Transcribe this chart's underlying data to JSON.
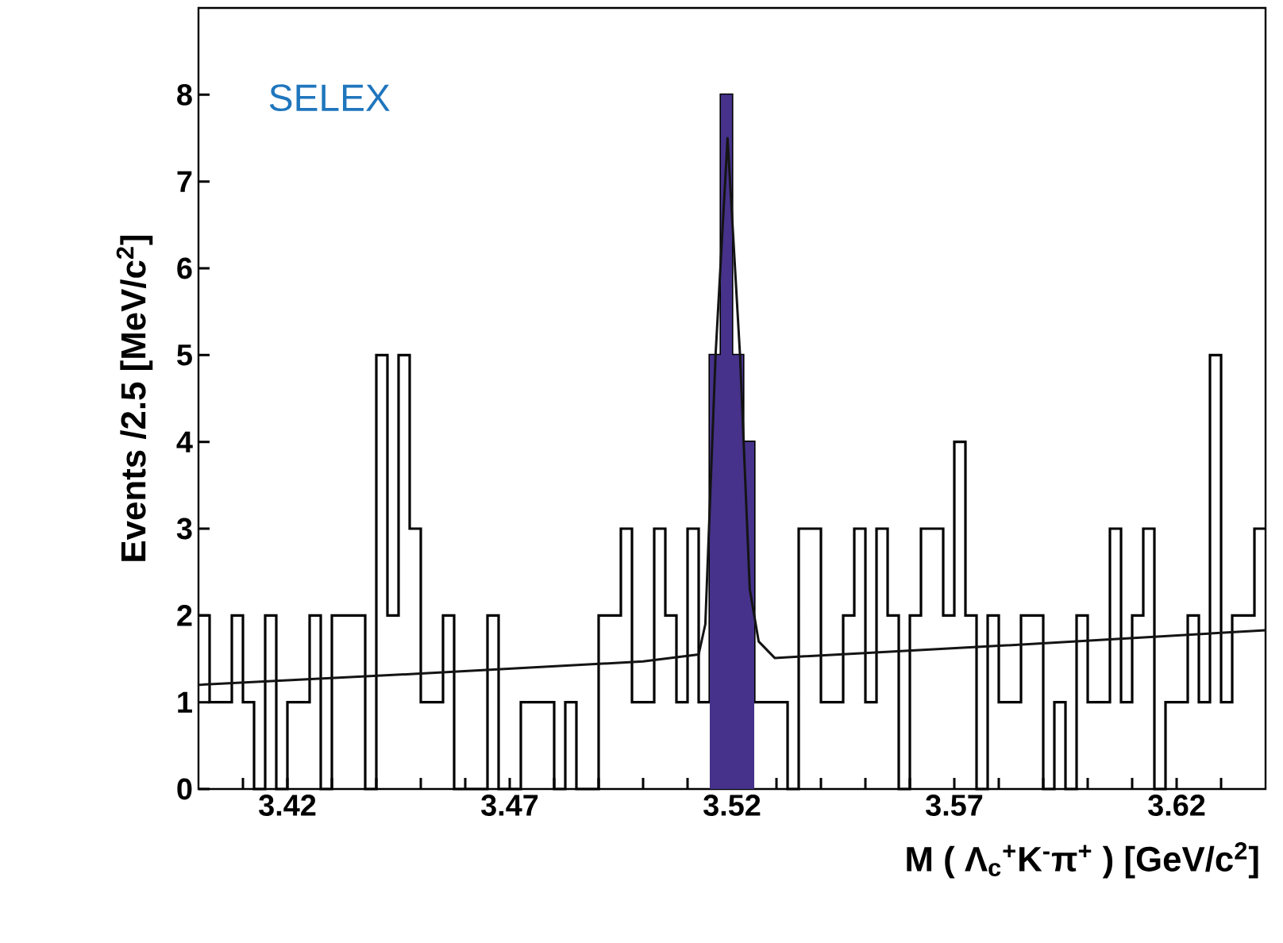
{
  "chart_data": {
    "type": "histogram",
    "xlabel": "M ( Λ$_{c}$$^{+}$K$^{-}$π$^{+}$ )  [GeV/c$^{2}$]",
    "ylabel": "Events /2.5 [MeV/c$^{2}$]",
    "annotations": [
      "SELEX"
    ],
    "bins": [
      3.4,
      3.4025,
      3.405,
      3.4075,
      3.41,
      3.4125,
      3.415,
      3.4175,
      3.42,
      3.4225,
      3.425,
      3.4275,
      3.43,
      3.4325,
      3.435,
      3.4375,
      3.44,
      3.4425,
      3.445,
      3.4475,
      3.45,
      3.4525,
      3.455,
      3.4575,
      3.46,
      3.4625,
      3.465,
      3.4675,
      3.47,
      3.4725,
      3.475,
      3.4775,
      3.48,
      3.4825,
      3.485,
      3.4875,
      3.49,
      3.4925,
      3.495,
      3.4975,
      3.5,
      3.5025,
      3.505,
      3.5075,
      3.51,
      3.5125,
      3.515,
      3.5175,
      3.52,
      3.5225,
      3.525,
      3.5275,
      3.53,
      3.5325,
      3.535,
      3.5375,
      3.54,
      3.5425,
      3.545,
      3.5475,
      3.55,
      3.5525,
      3.555,
      3.5575,
      3.56,
      3.5625,
      3.565,
      3.5675,
      3.57,
      3.5725,
      3.575,
      3.5775,
      3.58,
      3.5825,
      3.585,
      3.5875,
      3.59,
      3.5925,
      3.595,
      3.5975,
      3.6,
      3.6025,
      3.605,
      3.6075,
      3.61,
      3.6125,
      3.615,
      3.6175,
      3.62,
      3.6225,
      3.625,
      3.6275,
      3.63,
      3.6325,
      3.635,
      3.6375,
      3.64
    ],
    "series": [
      {
        "type": "histogram",
        "color": "#000000",
        "values": [
          2,
          1,
          1,
          2,
          1,
          0,
          2,
          0,
          1,
          1,
          2,
          0,
          2,
          2,
          2,
          0,
          5,
          2,
          5,
          3,
          1,
          1,
          2,
          0,
          0,
          0,
          2,
          0,
          0,
          1,
          1,
          1,
          0,
          1,
          0,
          0,
          2,
          2,
          3,
          1,
          1,
          3,
          2,
          1,
          3,
          1,
          5,
          8,
          5,
          4,
          1,
          1,
          1,
          0,
          3,
          3,
          1,
          1,
          2,
          3,
          1,
          3,
          2,
          0,
          2,
          3,
          3,
          2,
          4,
          2,
          0,
          2,
          1,
          1,
          2,
          2,
          0,
          1,
          0,
          2,
          1,
          1,
          3,
          1,
          2,
          3,
          0,
          1,
          1,
          2,
          1,
          5,
          1,
          2,
          2,
          3
        ]
      },
      {
        "type": "histogram",
        "color": "#46328a",
        "bins": [
          3.515,
          3.5175,
          3.52,
          3.5225,
          3.525
        ],
        "values": [
          5,
          8,
          5,
          4
        ]
      },
      {
        "type": "line",
        "color": "#141414",
        "x": [
          3.4,
          3.45,
          3.5,
          3.5125,
          3.514,
          3.5163,
          3.519,
          3.5218,
          3.524,
          3.526,
          3.5296,
          3.58,
          3.64
        ],
        "values": [
          1.2,
          1.33,
          1.47,
          1.55,
          1.9,
          5.0,
          7.5,
          5.0,
          2.3,
          1.7,
          1.51,
          1.65,
          1.83
        ]
      }
    ],
    "xlim": [
      3.4,
      3.64
    ],
    "ylim": [
      0,
      9
    ],
    "xticks": [
      3.42,
      3.47,
      3.52,
      3.57,
      3.62,
      {
        "value": 3.41,
        "label": null
      },
      {
        "value": 3.43,
        "label": null
      },
      {
        "value": 3.44,
        "label": null
      },
      {
        "value": 3.45,
        "label": null
      },
      {
        "value": 3.46,
        "label": null
      },
      {
        "value": 3.48,
        "label": null
      },
      {
        "value": 3.49,
        "label": null
      },
      {
        "value": 3.5,
        "label": null
      },
      {
        "value": 3.51,
        "label": null
      },
      {
        "value": 3.53,
        "label": null
      },
      {
        "value": 3.54,
        "label": null
      },
      {
        "value": 3.55,
        "label": null
      },
      {
        "value": 3.56,
        "label": null
      },
      {
        "value": 3.58,
        "label": null
      },
      {
        "value": 3.59,
        "label": null
      },
      {
        "value": 3.6,
        "label": null
      },
      {
        "value": 3.61,
        "label": null
      },
      {
        "value": 3.63,
        "label": null
      }
    ],
    "yticks": [
      0,
      1,
      2,
      3,
      4,
      5,
      6,
      7,
      8
    ],
    "grid": false
  }
}
